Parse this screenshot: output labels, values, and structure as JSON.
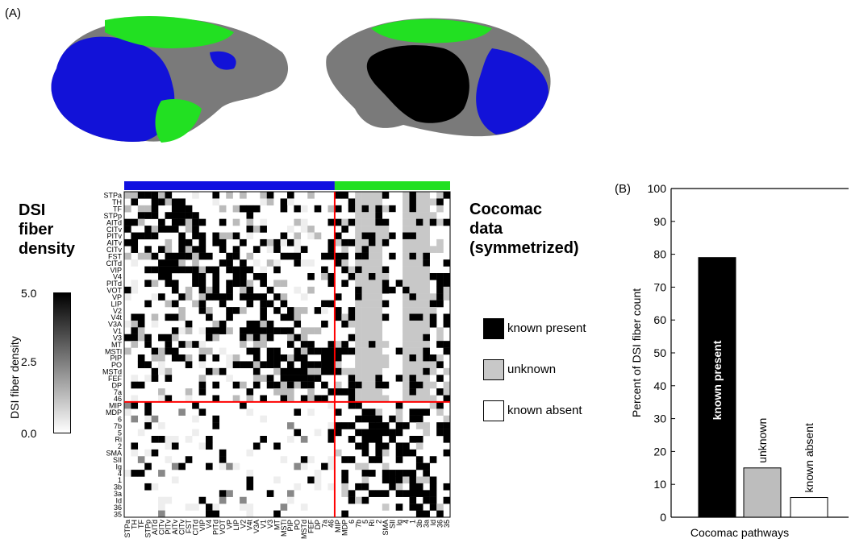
{
  "panel_a_label": "(A)",
  "panel_b_label": "(B)",
  "colors": {
    "blue": "#1010e0",
    "green": "#22e022",
    "gray": "#7a7a7a",
    "black": "#000000",
    "red": "#ff0000",
    "unknown": "#c8c8c8"
  },
  "left_title_lines": [
    "DSI",
    "fiber",
    "density"
  ],
  "right_title_lines": [
    "Cocomac",
    "data",
    "(symmetrized)"
  ],
  "colorbar": {
    "title": "DSI fiber density",
    "ticks": [
      "5.0",
      "2.5",
      "0.0"
    ]
  },
  "matrix_labels": [
    "STPa",
    "TH",
    "TF",
    "STPp",
    "AITd",
    "CITv",
    "PITv",
    "AITv",
    "CITv",
    "FST",
    "CITd",
    "VIP",
    "V4",
    "PITd",
    "VOT",
    "VP",
    "LIP",
    "V2",
    "V4t",
    "V3A",
    "V1",
    "V3",
    "MT",
    "MSTl",
    "PIP",
    "PO",
    "MSTd",
    "FEF",
    "DP",
    "7a",
    "46",
    "MIP",
    "MDP",
    "6",
    "7b",
    "5",
    "Ri",
    "2",
    "SMA",
    "SII",
    "Ig",
    "4",
    "1",
    "3b",
    "3a",
    "Id",
    "36",
    "35"
  ],
  "legend": {
    "present": "known present",
    "unknown": "unknown",
    "absent": "known absent"
  },
  "chart_data": {
    "type": "bar",
    "categories": [
      "known present",
      "unknown",
      "known absent"
    ],
    "values": [
      79,
      15,
      6
    ],
    "xlabel": "Cocomac pathways",
    "ylabel": "Percent of DSI fiber count",
    "ylim": [
      0,
      100
    ],
    "yticks": [
      0,
      10,
      20,
      30,
      40,
      50,
      60,
      70,
      80,
      90,
      100
    ],
    "bar_colors": [
      "#000000",
      "#bdbdbd",
      "#ffffff"
    ]
  }
}
